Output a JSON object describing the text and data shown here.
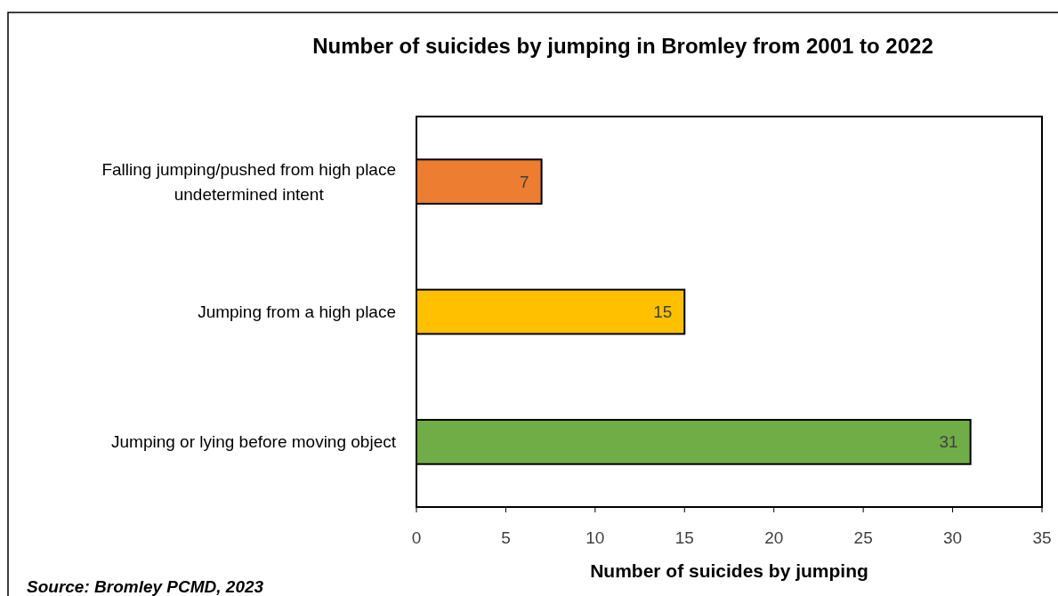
{
  "chart_data": {
    "type": "bar",
    "orientation": "horizontal",
    "title": "Number of suicides by jumping in Bromley from 2001 to 2022",
    "xlabel": "Number of suicides by jumping",
    "categories": [
      "Falling jumping/pushed from high place undetermined intent",
      "Jumping from a high place",
      "Jumping or lying before moving object"
    ],
    "values": [
      7,
      15,
      31
    ],
    "colors": [
      "#ed7d31",
      "#ffc000",
      "#70ad47"
    ],
    "xlim": [
      0,
      35
    ],
    "xticks": [
      0,
      5,
      10,
      15,
      20,
      25,
      30,
      35
    ],
    "data_labels": true,
    "grid": false,
    "annotations": [
      "Source: Bromley PCMD, 2023"
    ]
  }
}
